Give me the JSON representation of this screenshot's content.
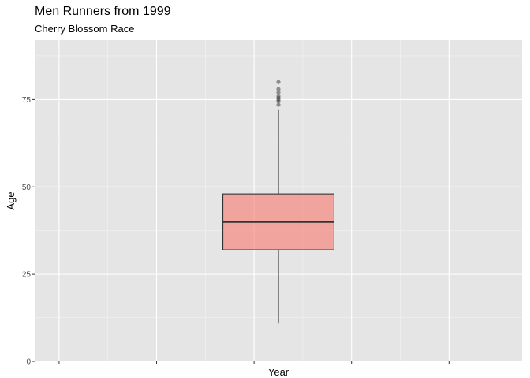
{
  "chart_data": {
    "type": "boxplot",
    "title": "Men Runners from 1999",
    "subtitle": "Cherry Blossom Race",
    "xlabel": "Year",
    "ylabel": "Age",
    "ylim": [
      0,
      92
    ],
    "yticks": [
      0,
      25,
      50,
      75
    ],
    "xlim": [
      0,
      1
    ],
    "xticks": [
      0.05,
      0.25,
      0.45,
      0.65,
      0.85
    ],
    "box": {
      "min": 11,
      "q1": 32,
      "median": 40,
      "q3": 48,
      "max": 72,
      "outliers": [
        73.5,
        74.5,
        75,
        75.5,
        76,
        77,
        78,
        80
      ],
      "fill": "#f8766d"
    },
    "grid": true,
    "panel_background": "#e5e5e5"
  }
}
